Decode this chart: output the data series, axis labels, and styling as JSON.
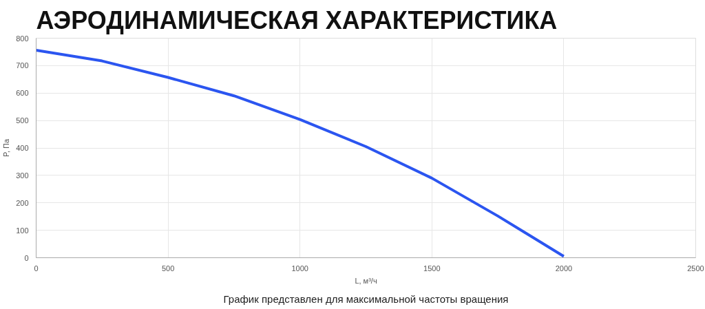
{
  "chart_data": {
    "type": "line",
    "title": "АЭРОДИНАМИЧЕСКАЯ ХАРАКТЕРИСТИКА",
    "xlabel": "L, м³/ч",
    "ylabel": "P, Па",
    "annotations": [
      "График представлен для максимальной частоты вращения"
    ],
    "x": [
      0,
      250,
      500,
      750,
      1000,
      1250,
      1500,
      1750,
      2000
    ],
    "series": [
      {
        "color": "#2b55f0",
        "values": [
          756,
          717,
          657,
          590,
          504,
          405,
          290,
          152,
          5
        ]
      }
    ],
    "xlim": [
      0,
      2500
    ],
    "xticks": [
      0,
      500,
      1000,
      1500,
      2000,
      2500
    ],
    "ylim": [
      0,
      800
    ],
    "yticks": [
      0,
      100,
      200,
      300,
      400,
      500,
      600,
      700,
      800
    ],
    "grid": true,
    "marker": "none",
    "line_style": "solid"
  }
}
